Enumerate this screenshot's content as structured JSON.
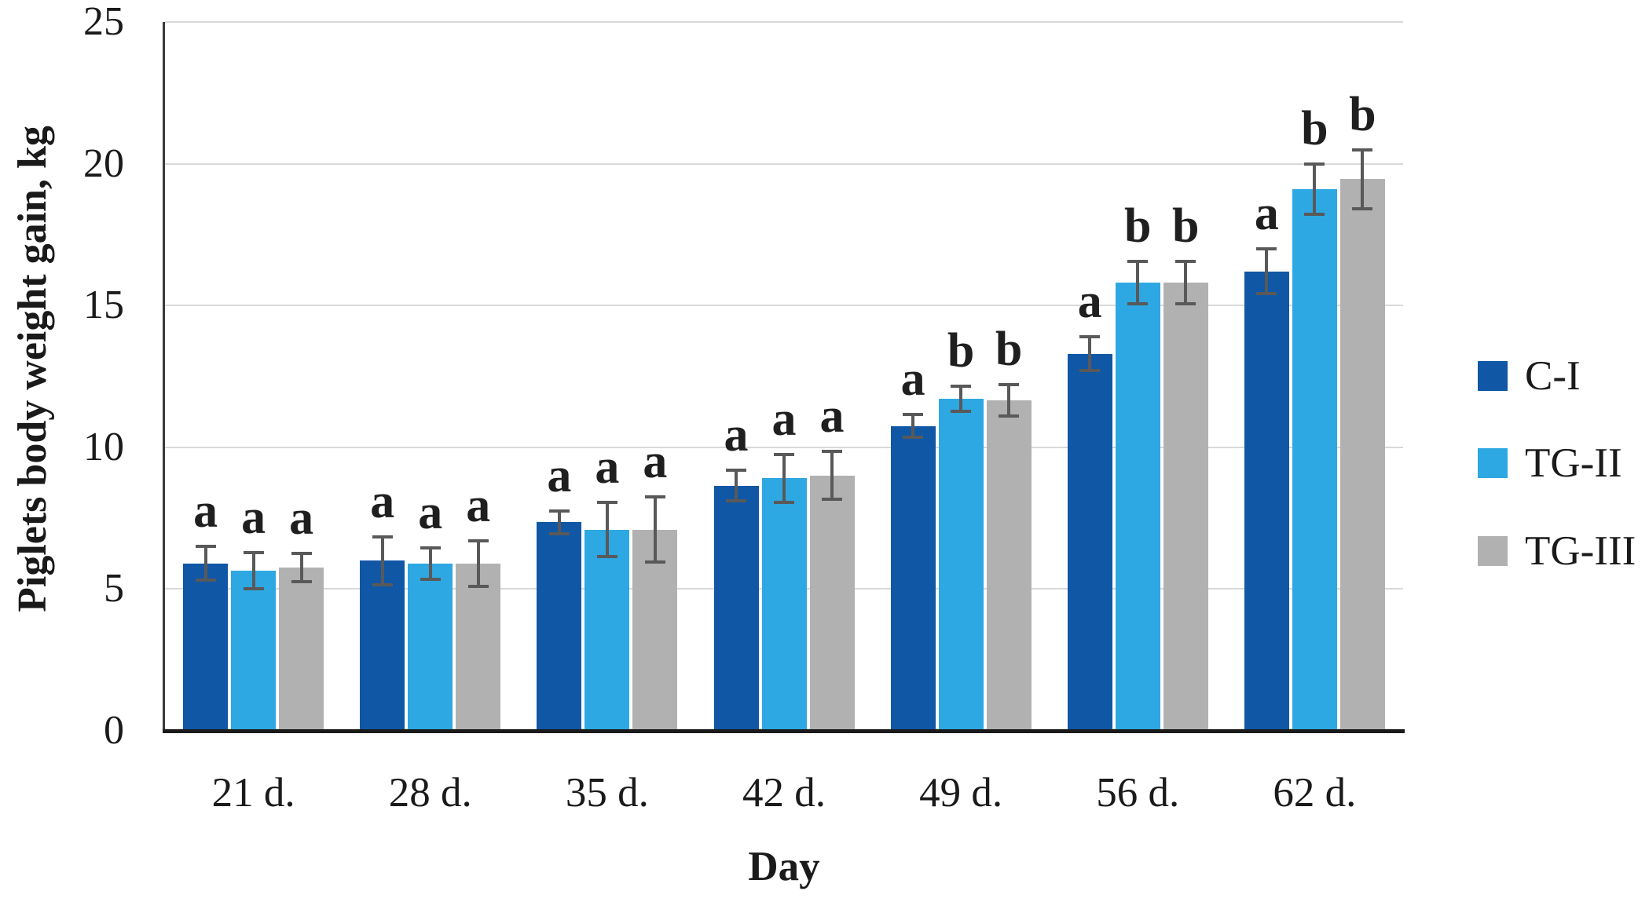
{
  "chart_data": {
    "type": "bar",
    "title": "",
    "ylabel": "Piglets body weight gain, kg",
    "xlabel": "Day",
    "categories": [
      "21 d.",
      "28 d.",
      "35 d.",
      "42 d.",
      "49 d.",
      "56 d.",
      "62 d."
    ],
    "yticks": [
      0,
      5,
      10,
      15,
      20,
      25
    ],
    "ylim": [
      0,
      25
    ],
    "grid": true,
    "legend_position": "right",
    "series": [
      {
        "name": "C-I",
        "color": "#1057A5",
        "values": [
          5.9,
          6.0,
          7.35,
          8.65,
          10.75,
          13.3,
          16.2
        ],
        "errors": [
          0.65,
          0.9,
          0.45,
          0.6,
          0.45,
          0.65,
          0.85
        ],
        "letters": [
          "a",
          "a",
          "a",
          "a",
          "a",
          "a",
          "a"
        ]
      },
      {
        "name": "TG-II",
        "color": "#2EA8E2",
        "values": [
          5.65,
          5.9,
          7.1,
          8.9,
          11.7,
          15.8,
          19.1
        ],
        "errors": [
          0.7,
          0.6,
          1.0,
          0.9,
          0.5,
          0.8,
          0.95
        ],
        "letters": [
          "a",
          "a",
          "a",
          "a",
          "b",
          "b",
          "b"
        ]
      },
      {
        "name": "TG-III",
        "color": "#B1B1B1",
        "values": [
          5.75,
          5.9,
          7.1,
          9.0,
          11.65,
          15.8,
          19.45
        ],
        "errors": [
          0.55,
          0.85,
          1.2,
          0.9,
          0.6,
          0.8,
          1.1
        ],
        "letters": [
          "a",
          "a",
          "a",
          "a",
          "b",
          "b",
          "b"
        ]
      }
    ],
    "colors": {
      "error_bar": "#595959",
      "gridline": "#D9D9D9",
      "y_axis": "#3A3A3A",
      "baseline": "#1A1A1A",
      "text": "#1A1A1A"
    }
  }
}
